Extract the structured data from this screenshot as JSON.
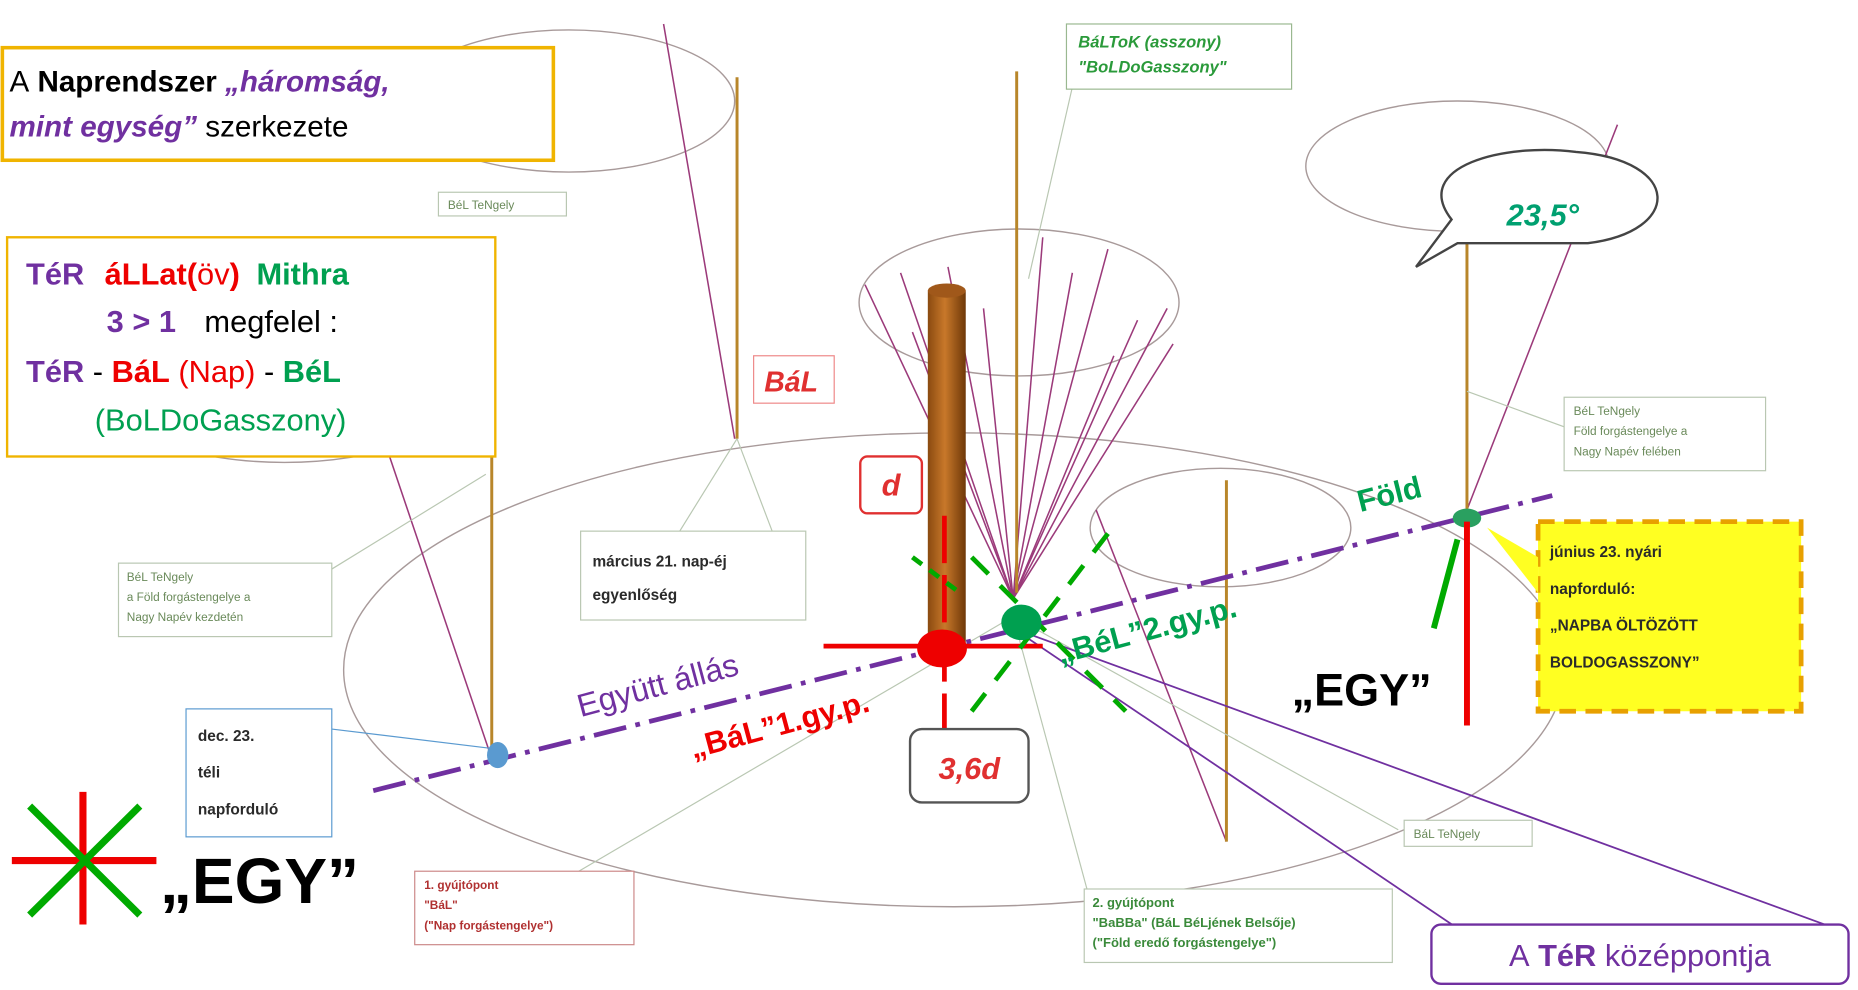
{
  "title": {
    "line1": [
      "A",
      "Naprendszer",
      "„háromság,"
    ],
    "line2": [
      "mint egység”",
      "szerkezete"
    ]
  },
  "mithra_box": {
    "line1": [
      "TéR",
      "áLLat(",
      "öv",
      ")",
      "Mithra"
    ],
    "line2": [
      "3 > 1",
      "megfelel :"
    ],
    "line3": [
      "TéR",
      "-",
      "BáL",
      "(Nap)",
      "-",
      "BéL"
    ],
    "line4": "(BoLDoGasszony)"
  },
  "labels": {
    "baltok": [
      "BáLToK (asszony)",
      "\"BoLDoGasszony\""
    ],
    "bel_tengely_top": "BéL TeNgely",
    "bal": "BáL",
    "angle": "23,5°",
    "bel_tengely_right": [
      "BéL TeNgely",
      "Föld forgástengelye a",
      "Nagy Napév felében"
    ],
    "fold": "Föld",
    "d": "d",
    "marcius": [
      "március 21. nap-éj",
      "egyenlőség"
    ],
    "bel_tengely_left": [
      "BéL TeNgely",
      "a Föld forgástengelye a",
      "Nagy Napév kezdetén"
    ],
    "bel_gyp": "„BéL”2.gy.p.",
    "egyutt": "Együtt állás",
    "bal_gyp": "„BáL”1.gy.p.",
    "junius": [
      "június 23. nyári",
      "napforduló:",
      "„NAPBA ÖLTÖZÖTT",
      "BOLDOGASSZONY”"
    ],
    "egy_right": "„EGY”",
    "dec": [
      "dec. 23.",
      "téli",
      "napforduló"
    ],
    "d36": "3,6d",
    "egy_left": "„EGY”",
    "gyujto1": [
      "1. gyújtópont",
      "\"BáL\"",
      "(\"Nap forgástengelye\")"
    ],
    "bal_tengely": "BáL TeNgely",
    "gyujto2": [
      "2. gyújtópont",
      "\"BaBBa\" (BáL BéLjének Belsője)",
      "(\"Föld eredő forgástengelye\")"
    ],
    "center": [
      "A",
      "TéR",
      "középpontja"
    ]
  }
}
